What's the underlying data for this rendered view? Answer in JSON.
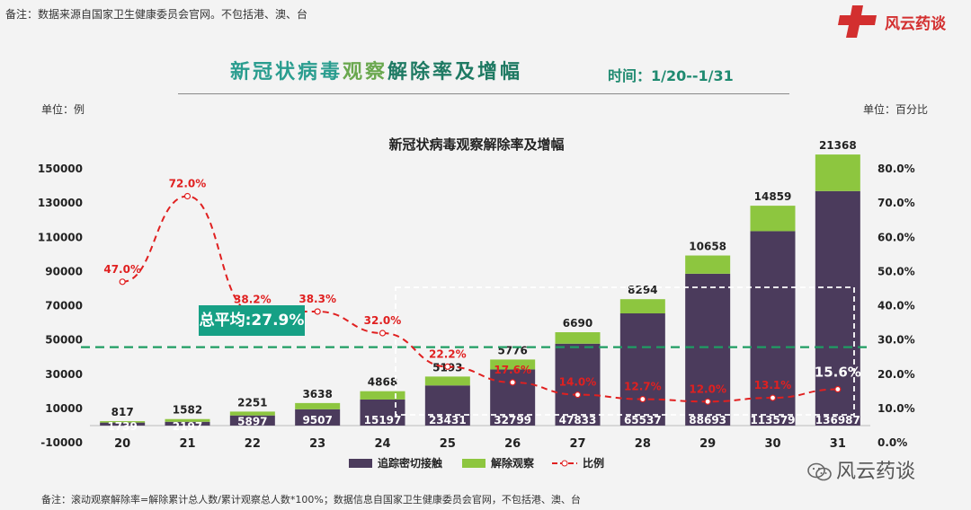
{
  "header": {
    "top_note": "备注：数据来源自国家卫生健康委员会官网。不包括港、澳、台",
    "brand": "风云药谈",
    "title_part1": "新冠状病毒",
    "title_part2": "观察",
    "title_part3": "解除率及增幅",
    "time_label": "时间：1/20--1/31",
    "unit_left": "单位：例",
    "unit_right": "单位：百分比"
  },
  "footer": {
    "note": "备注：滚动观察解除率=解除累计总人数/累计观察总人数*100%；数据信息自国家卫生健康委员会官网，不包括港、澳、台",
    "wechat": "风云药谈"
  },
  "average_label": "总平均:27.9%",
  "colors": {
    "tracked": "#4b3b5c",
    "released": "#8dc63f",
    "ratio": "#e02020",
    "average": "#1f9d63"
  },
  "chart_data": {
    "type": "bar",
    "title": "新冠状病毒观察解除率及增幅",
    "categories": [
      "20",
      "21",
      "22",
      "23",
      "24",
      "25",
      "26",
      "27",
      "28",
      "29",
      "30",
      "31"
    ],
    "series": [
      {
        "name": "追踪密切接触",
        "type": "bar",
        "values": [
          1739,
          2197,
          5897,
          9507,
          15197,
          23431,
          32799,
          47833,
          65537,
          88693,
          113579,
          136987
        ]
      },
      {
        "name": "解除观察",
        "type": "bar",
        "values": [
          817,
          1582,
          2251,
          3638,
          4868,
          5193,
          5776,
          6690,
          8294,
          10658,
          14859,
          21368
        ]
      },
      {
        "name": "比例",
        "type": "line",
        "axis": "right",
        "values": [
          47.0,
          72.0,
          38.2,
          38.3,
          32.0,
          22.2,
          17.6,
          14.0,
          12.7,
          12.0,
          13.1,
          15.6
        ]
      }
    ],
    "tracked_labels": [
      "1739",
      "2197",
      "5897",
      "9507",
      "15197",
      "23431",
      "32799",
      "47833",
      "65537",
      "88693",
      "113579",
      "136987"
    ],
    "released_labels": [
      "817",
      "1582",
      "2251",
      "3638",
      "4868",
      "5193",
      "5776",
      "6690",
      "8294",
      "10658",
      "14859",
      "21368"
    ],
    "ratio_labels": [
      "47.0%",
      "72.0%",
      "38.2%",
      "38.3%",
      "32.0%",
      "22.2%",
      "17.6%",
      "14.0%",
      "12.7%",
      "12.0%",
      "13.1%",
      "15.6%"
    ],
    "average_ratio": 27.9,
    "y_left_ticks": [
      "150000",
      "130000",
      "110000",
      "90000",
      "70000",
      "50000",
      "30000",
      "10000",
      "-10000"
    ],
    "y_left_range": [
      -10000,
      150000
    ],
    "y_right_ticks": [
      "80.0%",
      "70.0%",
      "60.0%",
      "50.0%",
      "40.0%",
      "30.0%",
      "20.0%",
      "10.0%",
      "0.0%"
    ],
    "y_right_range": [
      0,
      80
    ],
    "legend": [
      "追踪密切接触",
      "解除观察",
      "比例"
    ],
    "legend_position": "bottom"
  }
}
